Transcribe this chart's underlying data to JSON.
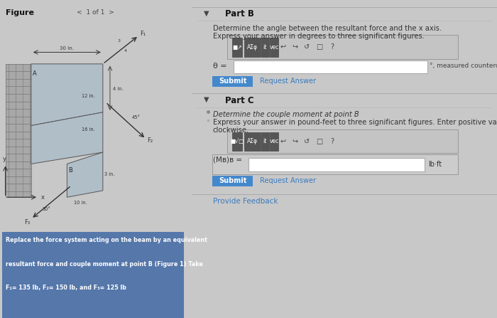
{
  "bg_main": "#c8c8c8",
  "bg_left": "#c0c4c8",
  "bg_right": "#d4d4d4",
  "problem_lines": [
    "Replace the force system acting on the beam by an equivalent",
    "resultant force and couple moment at point B (Figure 1) Take",
    "F₁= 135 lb, F₂= 150 lb, and F₃= 125 lb"
  ],
  "prob_box_color": "#5577aa",
  "figure_label": "Figure",
  "nav_text": "1 of 1",
  "partB_title": "Part B",
  "partB_q1": "Determine the angle between the resultant force and the x axis.",
  "partB_q2": "Express your answer in degrees to three significant figures.",
  "theta_label": "θ =",
  "theta_suffix": "°, measured counterclo",
  "partC_title": "Part C",
  "partC_q1": "Determine the couple moment at point B",
  "partC_q2": "Express your answer in pound-feet to three significant figures. Enter positive value if the mome",
  "partC_q3": "clockwise.",
  "MB_label": "(Mʙ)ʙ =",
  "MB_suffix": "lb·ft",
  "submit_color": "#4488cc",
  "submit_text": "Submit",
  "request_text": "Request Answer",
  "provide_feedback": "Provide Feedback",
  "toolbar1": [
    "■⇒",
    "AΣφ",
    "it",
    "vec"
  ],
  "toolbar2": [
    "■√□",
    "AΣφ",
    "it",
    "vec"
  ],
  "icons": [
    "↩",
    "↪",
    "↺",
    "☐",
    "?"
  ]
}
